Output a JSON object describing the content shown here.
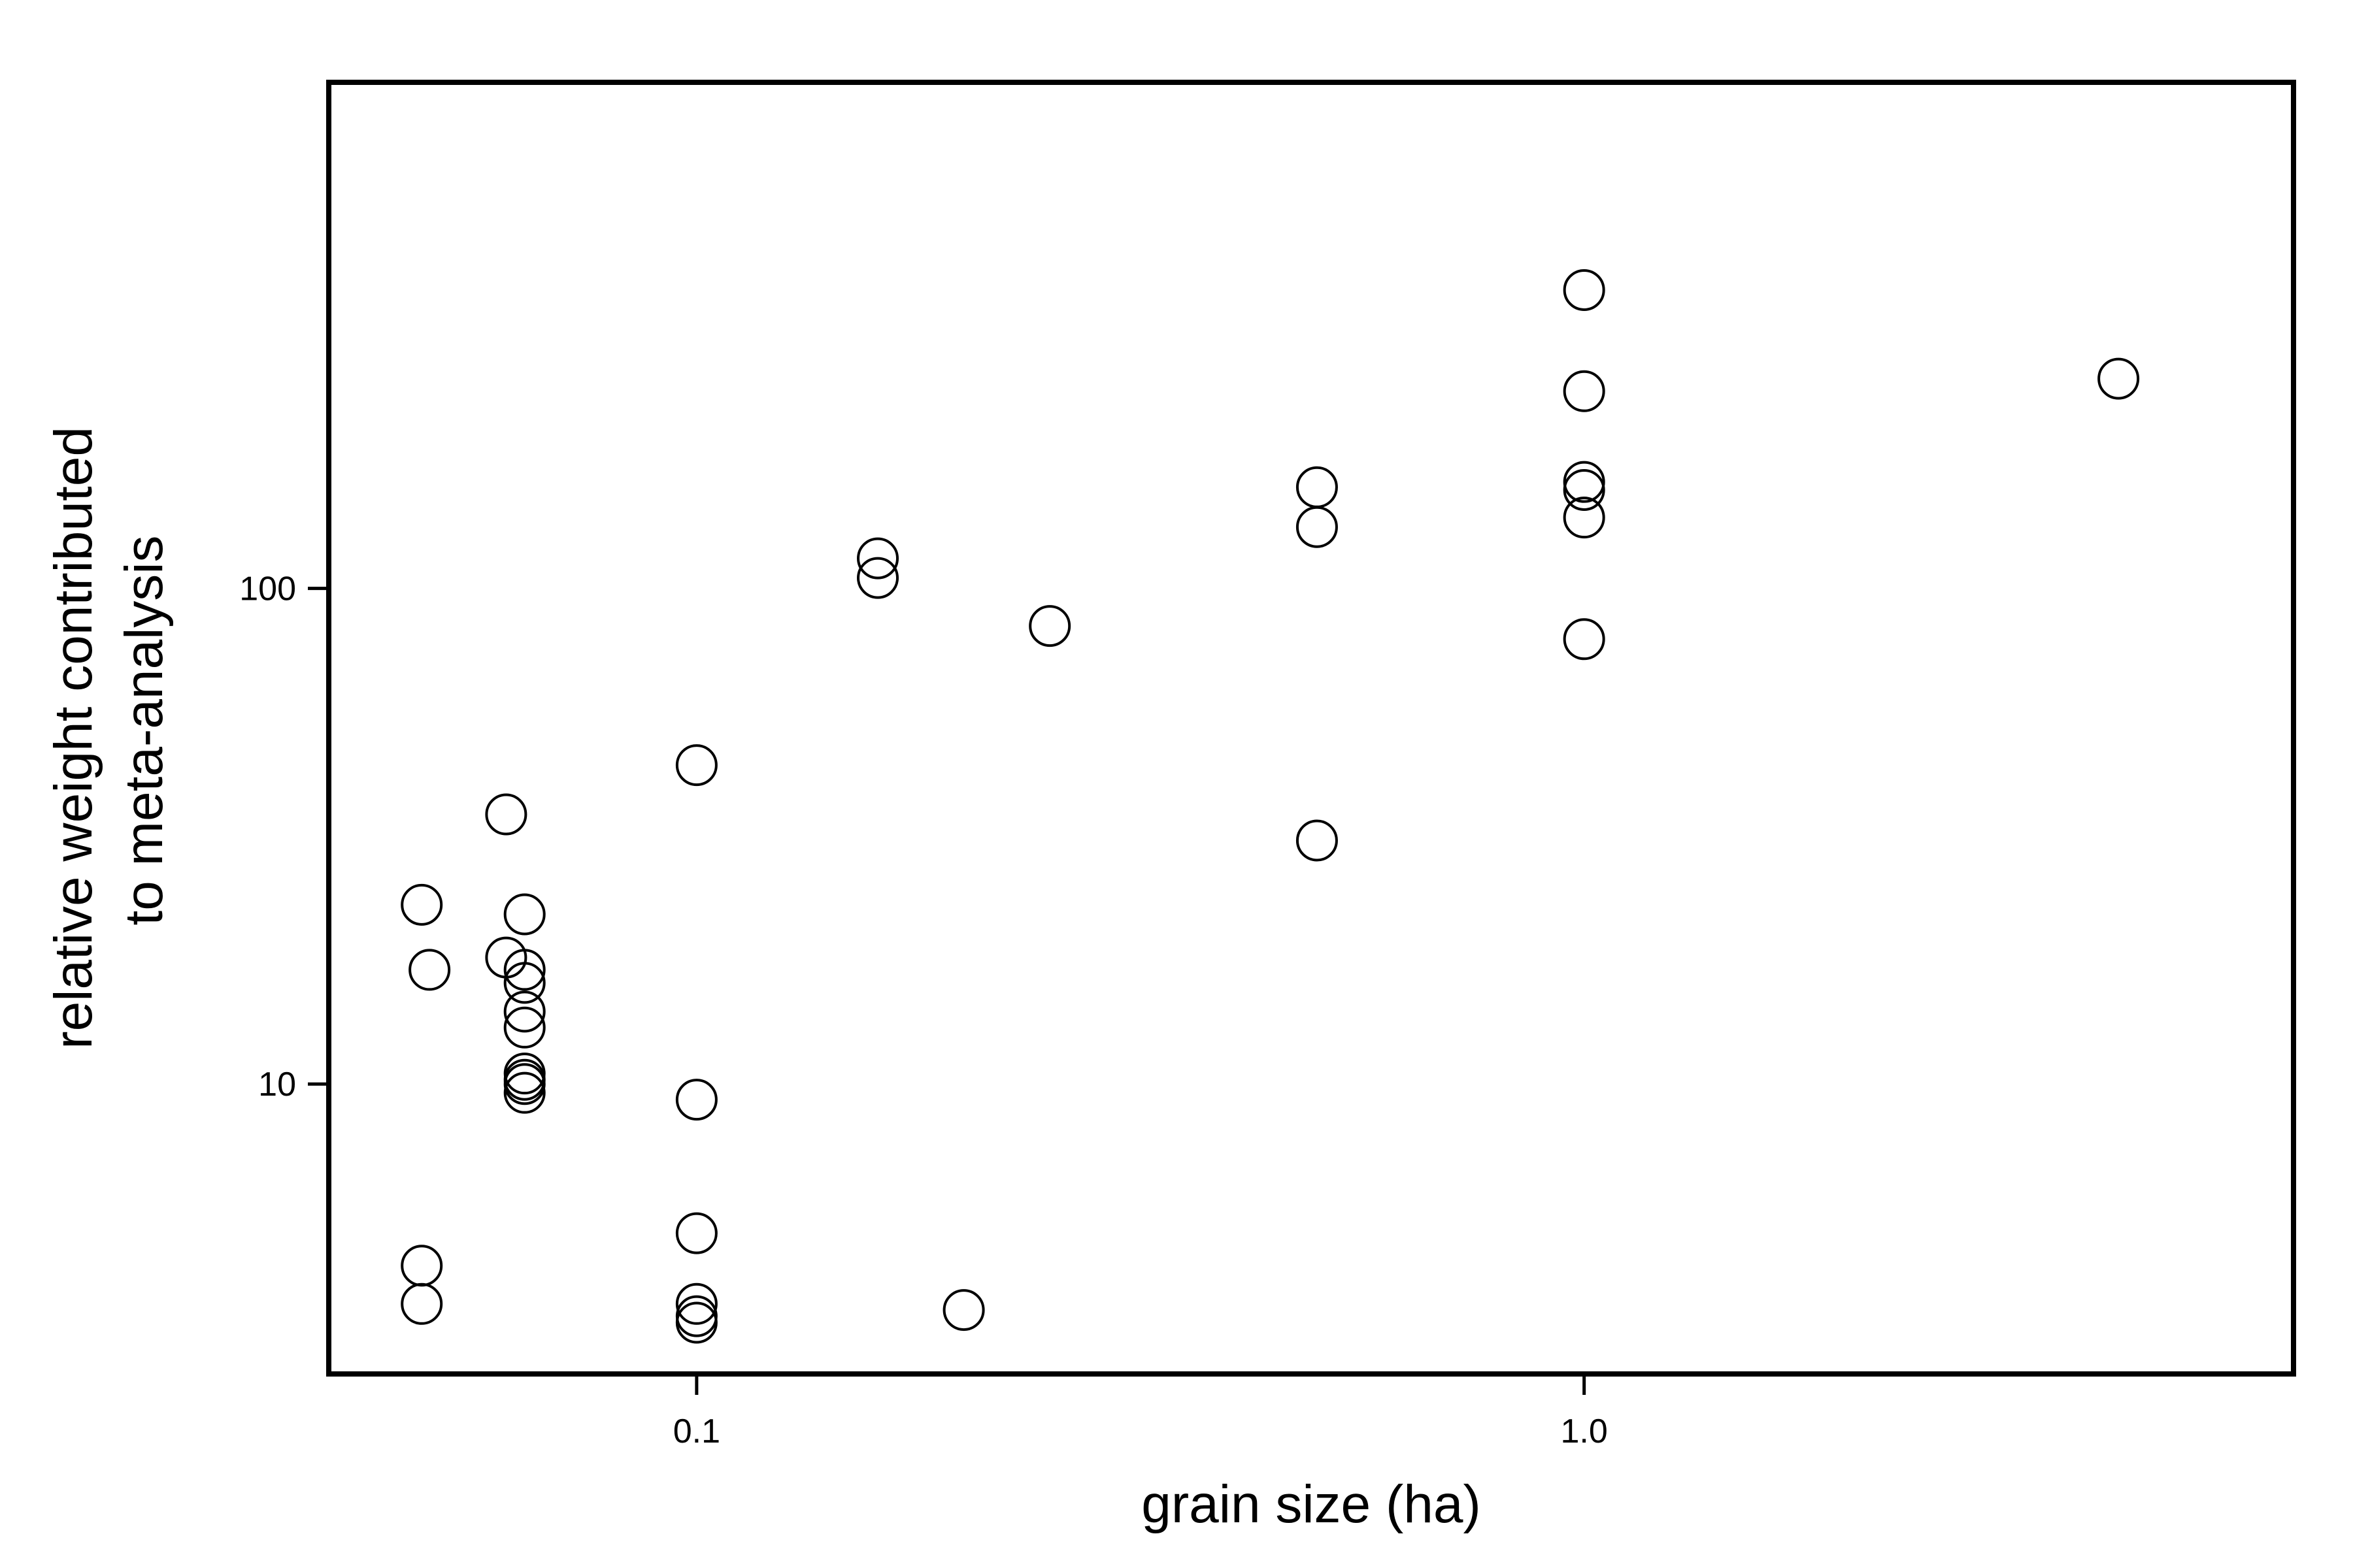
{
  "chart_data": {
    "type": "scatter",
    "xlabel": "grain size (ha)",
    "ylabel_lines": [
      "relative weight contributed",
      "to meta-analysis"
    ],
    "x_scale": "log",
    "y_scale": "log",
    "xlim": [
      0.0385,
      6.3
    ],
    "ylim": [
      2.6,
      1050
    ],
    "x_ticks": [
      {
        "value": 0.1,
        "label": "0.1"
      },
      {
        "value": 1.0,
        "label": "1.0"
      }
    ],
    "y_ticks": [
      {
        "value": 10,
        "label": "10"
      },
      {
        "value": 100,
        "label": "100"
      }
    ],
    "grid": false,
    "marker": "open-circle",
    "points": [
      {
        "x": 0.049,
        "y": 23
      },
      {
        "x": 0.05,
        "y": 17
      },
      {
        "x": 0.049,
        "y": 4.3
      },
      {
        "x": 0.049,
        "y": 3.6
      },
      {
        "x": 0.061,
        "y": 35
      },
      {
        "x": 0.061,
        "y": 18
      },
      {
        "x": 0.064,
        "y": 22
      },
      {
        "x": 0.064,
        "y": 17
      },
      {
        "x": 0.064,
        "y": 16
      },
      {
        "x": 0.064,
        "y": 14
      },
      {
        "x": 0.064,
        "y": 13
      },
      {
        "x": 0.064,
        "y": 10.5
      },
      {
        "x": 0.064,
        "y": 10.2
      },
      {
        "x": 0.064,
        "y": 10
      },
      {
        "x": 0.064,
        "y": 9.6
      },
      {
        "x": 0.1,
        "y": 44
      },
      {
        "x": 0.1,
        "y": 9.3
      },
      {
        "x": 0.1,
        "y": 5
      },
      {
        "x": 0.1,
        "y": 3.6
      },
      {
        "x": 0.1,
        "y": 3.4
      },
      {
        "x": 0.1,
        "y": 3.3
      },
      {
        "x": 0.16,
        "y": 115
      },
      {
        "x": 0.16,
        "y": 105
      },
      {
        "x": 0.2,
        "y": 3.5
      },
      {
        "x": 0.25,
        "y": 84
      },
      {
        "x": 0.5,
        "y": 160
      },
      {
        "x": 0.5,
        "y": 133
      },
      {
        "x": 0.5,
        "y": 31
      },
      {
        "x": 1.0,
        "y": 400
      },
      {
        "x": 1.0,
        "y": 250
      },
      {
        "x": 1.0,
        "y": 164
      },
      {
        "x": 1.0,
        "y": 158
      },
      {
        "x": 1.0,
        "y": 139
      },
      {
        "x": 1.0,
        "y": 79
      },
      {
        "x": 4.0,
        "y": 265
      }
    ]
  }
}
